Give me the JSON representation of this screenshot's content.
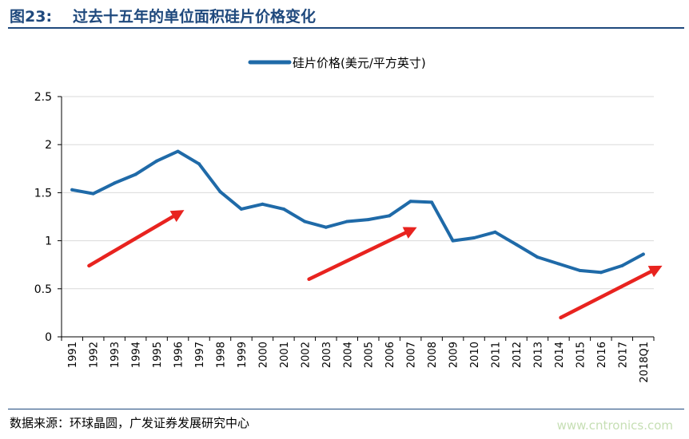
{
  "figure": {
    "number": "图23:",
    "title": "过去十五年的单位面积硅片价格变化",
    "source": "数据来源：环球晶圆，广发证券发展研究中心",
    "watermark": "www.cntronics.com"
  },
  "colors": {
    "title": "#1f497d",
    "line": "#1f6aa8",
    "arrow": "#e8231f",
    "grid": "#d9d9d9"
  },
  "chart_data": {
    "type": "line",
    "title": "",
    "xlabel": "",
    "ylabel": "",
    "legend_position": "top-center",
    "grid": true,
    "ylim": [
      0,
      2.5
    ],
    "yticks": [
      "0",
      "0.5",
      "1",
      "1.5",
      "2",
      "2.5"
    ],
    "categories": [
      "1991",
      "1992",
      "1993",
      "1994",
      "1995",
      "1996",
      "1997",
      "1998",
      "1999",
      "2000",
      "2001",
      "2002",
      "2003",
      "2004",
      "2005",
      "2006",
      "2007",
      "2008",
      "2009",
      "2010",
      "2011",
      "2012",
      "2013",
      "2014",
      "2015",
      "2016",
      "2017",
      "2018Q1"
    ],
    "series": [
      {
        "name": "硅片价格(美元/平方英寸)",
        "values": [
          1.53,
          1.49,
          1.6,
          1.69,
          1.83,
          1.93,
          1.8,
          1.51,
          1.33,
          1.38,
          1.33,
          1.2,
          1.14,
          1.2,
          1.22,
          1.26,
          1.41,
          1.4,
          1.0,
          1.03,
          1.09,
          0.96,
          0.83,
          0.76,
          0.69,
          0.67,
          0.74,
          0.86
        ]
      }
    ],
    "annotations": [
      {
        "type": "arrow",
        "from": [
          1991.8,
          0.74
        ],
        "to": [
          1996.3,
          1.32
        ]
      },
      {
        "type": "arrow",
        "from": [
          2002.2,
          0.6
        ],
        "to": [
          2007.3,
          1.14
        ]
      },
      {
        "type": "arrow",
        "from": [
          2014.1,
          0.2
        ],
        "to": [
          2018.9,
          0.74
        ]
      }
    ]
  }
}
